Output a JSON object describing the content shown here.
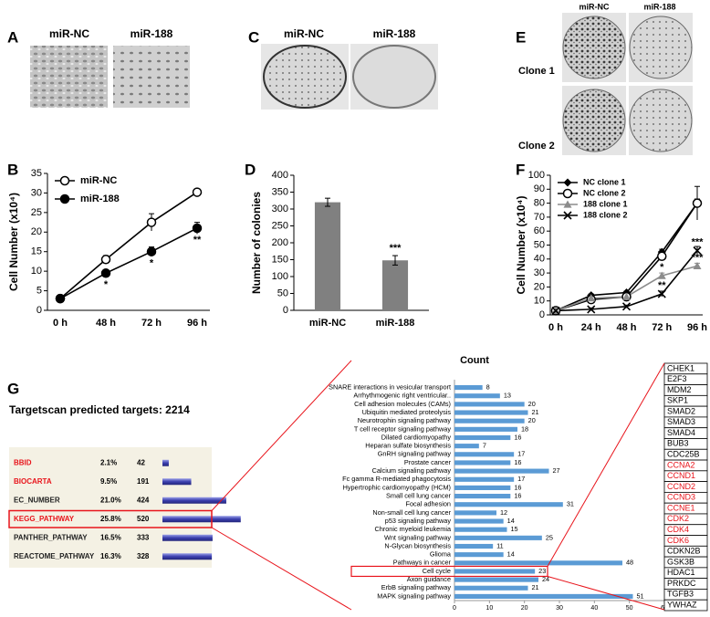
{
  "panel_labels": [
    "A",
    "B",
    "C",
    "D",
    "E",
    "F",
    "G"
  ],
  "panel_a": {
    "headers": [
      "miR-NC",
      "miR-188"
    ]
  },
  "panel_c": {
    "headers": [
      "miR-NC",
      "miR-188"
    ]
  },
  "panel_e": {
    "headers": [
      "miR-NC",
      "miR-188"
    ],
    "rows": [
      "Clone 1",
      "Clone 2"
    ]
  },
  "chart_data": [
    {
      "type": "line",
      "categories": [
        "0 h",
        "48 h",
        "72 h",
        "96 h"
      ],
      "ylabel": "Cell Number (x10⁴)",
      "ylim": [
        0,
        35
      ],
      "yticks": [
        0,
        5,
        10,
        15,
        20,
        25,
        30,
        35
      ],
      "legend": "upper left",
      "series": [
        {
          "name": "miR-NC",
          "color": "#000000",
          "marker": "circle-open",
          "values": [
            3,
            13,
            22.5,
            30.2
          ],
          "errors": [
            0.3,
            1,
            2.2,
            0.5
          ]
        },
        {
          "name": "miR-188",
          "color": "#000000",
          "marker": "circle",
          "values": [
            3,
            9.5,
            15,
            21
          ],
          "errors": [
            0.3,
            0.5,
            1.2,
            1.5
          ],
          "significance": [
            null,
            "*",
            "*",
            "**"
          ]
        }
      ]
    },
    {
      "type": "bar",
      "categories": [
        "miR-NC",
        "miR-188"
      ],
      "values": [
        320,
        148
      ],
      "errors": [
        12,
        14
      ],
      "significance": [
        null,
        "***"
      ],
      "color": "#808080",
      "ylabel": "Number of colonies",
      "ylim": [
        0,
        400
      ],
      "yticks": [
        0,
        50,
        100,
        150,
        200,
        250,
        300,
        350,
        400
      ]
    },
    {
      "type": "line",
      "categories": [
        "0 h",
        "24 h",
        "48 h",
        "72 h",
        "96 h"
      ],
      "ylabel": "Cell Number (x10⁴)",
      "ylim": [
        0,
        100
      ],
      "yticks": [
        0,
        10,
        20,
        30,
        40,
        50,
        60,
        70,
        80,
        90,
        100
      ],
      "legend": "upper left",
      "series": [
        {
          "name": "NC clone 1",
          "color": "#000000",
          "marker": "diamond",
          "values": [
            3,
            14,
            16,
            45,
            80
          ],
          "errors": [
            0.5,
            1,
            1,
            2,
            3
          ]
        },
        {
          "name": "NC clone 2",
          "color": "#000000",
          "marker": "circle-open",
          "values": [
            3,
            11,
            13,
            42,
            80
          ],
          "errors": [
            0.5,
            1,
            1,
            3,
            12
          ]
        },
        {
          "name": "188 clone 1",
          "color": "#8c8c8c",
          "marker": "triangle",
          "values": [
            3,
            12,
            13,
            28,
            35
          ],
          "errors": [
            0.5,
            1,
            1,
            2,
            2
          ],
          "significance": [
            null,
            null,
            null,
            "*",
            "***"
          ]
        },
        {
          "name": "188 clone 2",
          "color": "#000000",
          "marker": "x",
          "values": [
            3,
            4,
            6,
            15,
            46
          ],
          "errors": [
            0.5,
            1,
            1,
            2,
            3
          ],
          "significance": [
            null,
            null,
            null,
            "**",
            "***"
          ]
        }
      ]
    },
    {
      "type": "barh",
      "title": "Count",
      "categories": [
        "SNARE interactions in vesicular transport",
        "Arrhythmogenic right ventricular..",
        "Cell adhesion molecules (CAMs)",
        "Ubiquitin mediated proteolysis",
        "Neurotrophin signaling pathway",
        "T cell receptor signaling pathway",
        "Dilated cardiomyopathy",
        "Heparan sulfate biosynthesis",
        "GnRH signaling pathway",
        "Prostate cancer",
        "Calcium signaling pathway",
        "Fc gamma R-mediated phagocytosis",
        "Hypertrophic cardiomyopathy (HCM)",
        "Small cell lung cancer",
        "Focal adhesion",
        "Non-small cell lung cancer",
        "p53 signaling pathway",
        "Chronic myeloid leukemia",
        "Wnt signaling pathway",
        "N-Glycan biosynthesis",
        "Glioma",
        "Pathways in cancer",
        "Cell cycle",
        "Axon guidance",
        "ErbB signaling pathway",
        "MAPK signaling pathway"
      ],
      "values": [
        8,
        13,
        20,
        21,
        20,
        18,
        16,
        7,
        17,
        16,
        27,
        17,
        16,
        16,
        31,
        12,
        14,
        15,
        25,
        11,
        14,
        48,
        23,
        24,
        21,
        51
      ],
      "color": "#5b9bd5",
      "xlim": [
        0,
        60
      ],
      "xticks": [
        0,
        10,
        20,
        30,
        40,
        50,
        60
      ],
      "highlight_index": 22,
      "highlight_color": "#e8141b"
    }
  ],
  "panel_g": {
    "title": "Targetscan predicted targets: 2214",
    "highlight_color": "#e8141b",
    "table": [
      {
        "name": "BBID",
        "percent": "2.1%",
        "count": 42,
        "highlighted": true,
        "boxed": false
      },
      {
        "name": "BIOCARTA",
        "percent": "9.5%",
        "count": 191,
        "highlighted": true,
        "boxed": false
      },
      {
        "name": "EC_NUMBER",
        "percent": "21.0%",
        "count": 424,
        "highlighted": false,
        "boxed": false
      },
      {
        "name": "KEGG_PATHWAY",
        "percent": "25.8%",
        "count": 520,
        "highlighted": true,
        "boxed": true
      },
      {
        "name": "PANTHER_PATHWAY",
        "percent": "16.5%",
        "count": 333,
        "highlighted": false,
        "boxed": false
      },
      {
        "name": "REACTOME_PATHWAY",
        "percent": "16.3%",
        "count": 328,
        "highlighted": false,
        "boxed": false
      }
    ],
    "genes": [
      {
        "name": "CHEK1",
        "highlighted": false
      },
      {
        "name": "E2F3",
        "highlighted": false
      },
      {
        "name": "MDM2",
        "highlighted": false
      },
      {
        "name": "SKP1",
        "highlighted": false
      },
      {
        "name": "SMAD2",
        "highlighted": false
      },
      {
        "name": "SMAD3",
        "highlighted": false
      },
      {
        "name": "SMAD4",
        "highlighted": false
      },
      {
        "name": "BUB3",
        "highlighted": false
      },
      {
        "name": "CDC25B",
        "highlighted": false
      },
      {
        "name": "CCNA2",
        "highlighted": true
      },
      {
        "name": "CCND1",
        "highlighted": true
      },
      {
        "name": "CCND2",
        "highlighted": true
      },
      {
        "name": "CCND3",
        "highlighted": true
      },
      {
        "name": "CCNE1",
        "highlighted": true
      },
      {
        "name": "CDK2",
        "highlighted": true
      },
      {
        "name": "CDK4",
        "highlighted": true
      },
      {
        "name": "CDK6",
        "highlighted": true
      },
      {
        "name": "CDKN2B",
        "highlighted": false
      },
      {
        "name": "GSK3B",
        "highlighted": false
      },
      {
        "name": "HDAC1",
        "highlighted": false
      },
      {
        "name": "PRKDC",
        "highlighted": false
      },
      {
        "name": "TGFB3",
        "highlighted": false
      },
      {
        "name": "YWHAZ",
        "highlighted": false
      }
    ]
  }
}
